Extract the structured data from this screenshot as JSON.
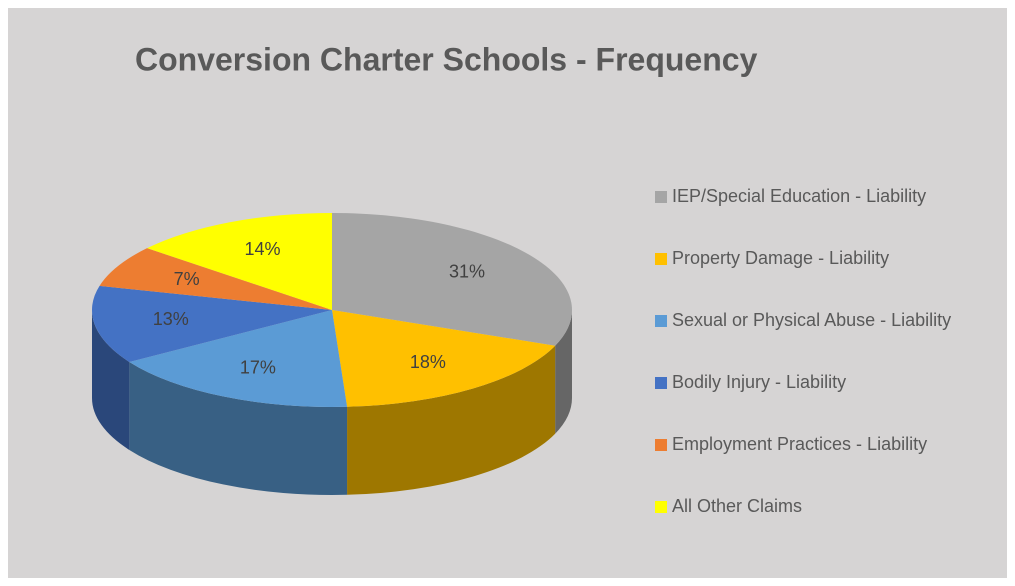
{
  "chart_data": {
    "type": "pie3d",
    "title": "Conversion Charter Schools - Frequency",
    "categories": [
      "IEP/Special Education - Liability",
      "Property Damage - Liability",
      "Sexual or Physical Abuse - Liability",
      "Bodily Injury - Liability",
      "Employment Practices - Liability",
      "All Other Claims"
    ],
    "values": [
      31,
      18,
      17,
      13,
      7,
      14
    ],
    "value_labels": [
      "31%",
      "18%",
      "17%",
      "13%",
      "7%",
      "14%"
    ],
    "colors": [
      "#a5a5a5",
      "#ffc000",
      "#5b9bd5",
      "#4472c4",
      "#ed7d31",
      "#ffff00"
    ],
    "legend": "right"
  }
}
